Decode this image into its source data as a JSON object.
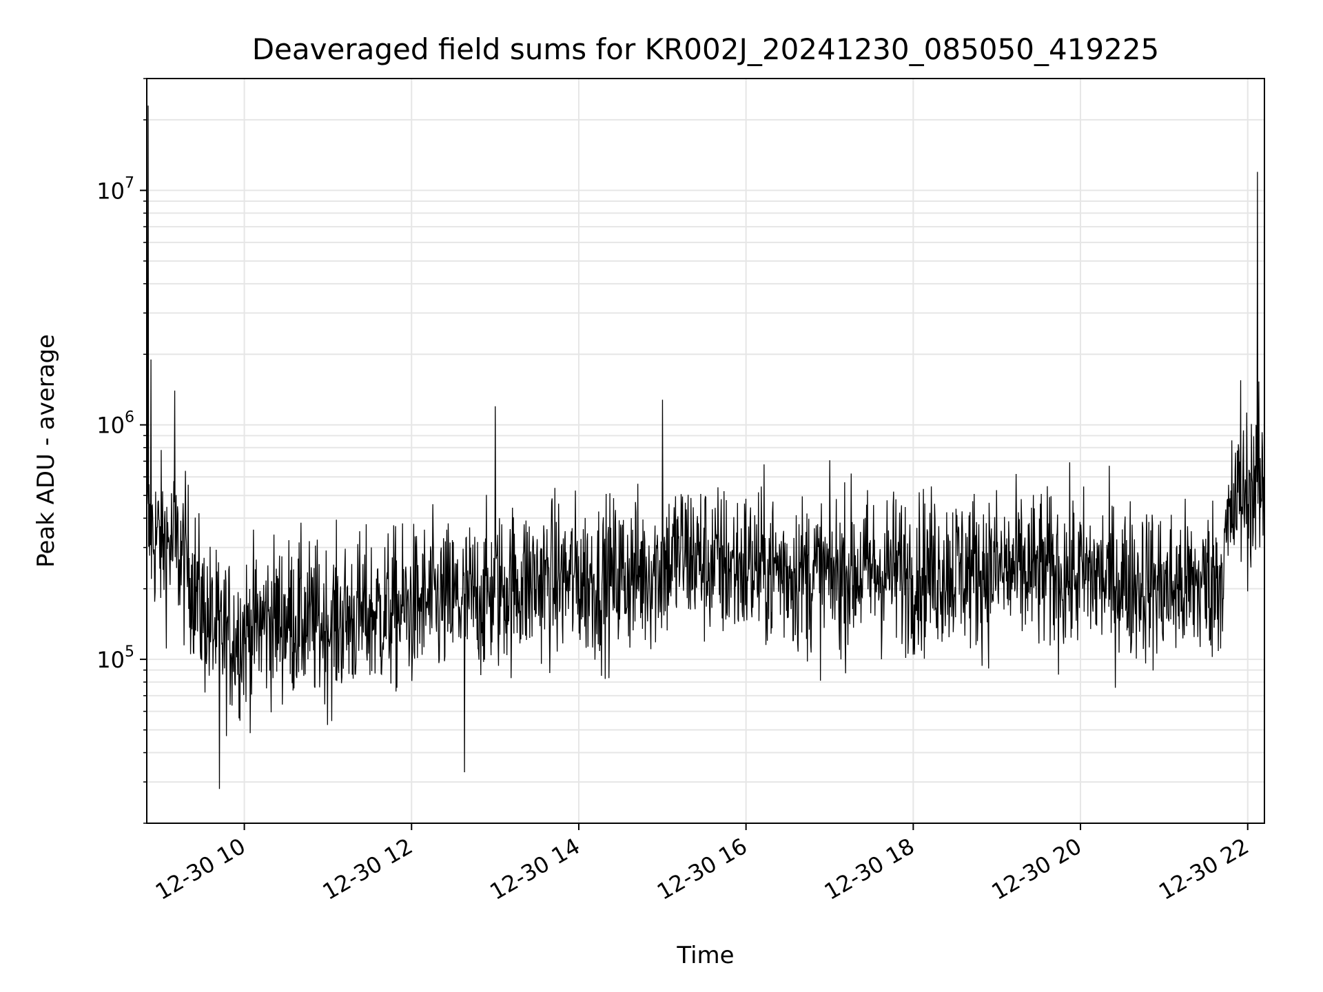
{
  "chart_data": {
    "type": "line",
    "title": "Deaveraged field sums for KR002J_20241230_085050_419225",
    "xlabel": "Time",
    "ylabel": "Peak ADU - average",
    "yscale": "log",
    "ylim": [
      20000,
      30000000
    ],
    "xlim": [
      "12-30 08:50",
      "12-30 22:12"
    ],
    "grid": true,
    "line_color": "#000000",
    "grid_color": "#e6e6e6",
    "x_ticks": [
      {
        "value": "12-30 10:00",
        "label": "12-30 10"
      },
      {
        "value": "12-30 12:00",
        "label": "12-30 12"
      },
      {
        "value": "12-30 14:00",
        "label": "12-30 14"
      },
      {
        "value": "12-30 16:00",
        "label": "12-30 16"
      },
      {
        "value": "12-30 18:00",
        "label": "12-30 18"
      },
      {
        "value": "12-30 20:00",
        "label": "12-30 20"
      },
      {
        "value": "12-30 22:00",
        "label": "12-30 22"
      }
    ],
    "y_ticks": [
      {
        "value": 100000,
        "base": "10",
        "exp": "5"
      },
      {
        "value": 1000000,
        "base": "10",
        "exp": "6"
      },
      {
        "value": 10000000,
        "base": "10",
        "exp": "7"
      }
    ],
    "series": [
      {
        "x": [
          "12-30 08:50",
          "12-30 09:00",
          "12-30 09:10",
          "12-30 09:20",
          "12-30 09:30",
          "12-30 09:40",
          "12-30 09:50",
          "12-30 10:00",
          "12-30 10:15",
          "12-30 10:30",
          "12-30 10:45",
          "12-30 11:00",
          "12-30 11:15",
          "12-30 11:30",
          "12-30 11:45",
          "12-30 12:00",
          "12-30 12:15",
          "12-30 12:30",
          "12-30 12:45",
          "12-30 13:00",
          "12-30 13:15",
          "12-30 13:30",
          "12-30 13:45",
          "12-30 14:00",
          "12-30 14:15",
          "12-30 14:30",
          "12-30 14:45",
          "12-30 15:00",
          "12-30 15:15",
          "12-30 15:30",
          "12-30 15:45",
          "12-30 16:00",
          "12-30 16:15",
          "12-30 16:30",
          "12-30 16:45",
          "12-30 17:00",
          "12-30 17:15",
          "12-30 17:30",
          "12-30 17:45",
          "12-30 18:00",
          "12-30 18:15",
          "12-30 18:30",
          "12-30 18:45",
          "12-30 19:00",
          "12-30 19:15",
          "12-30 19:30",
          "12-30 19:45",
          "12-30 20:00",
          "12-30 20:15",
          "12-30 20:30",
          "12-30 20:45",
          "12-30 21:00",
          "12-30 21:15",
          "12-30 21:30",
          "12-30 21:40",
          "12-30 21:50",
          "12-30 22:00",
          "12-30 22:05",
          "12-30 22:12"
        ],
        "y": [
          350000,
          320000,
          300000,
          250000,
          160000,
          130000,
          125000,
          130000,
          145000,
          150000,
          145000,
          140000,
          150000,
          155000,
          160000,
          165000,
          175000,
          175000,
          180000,
          195000,
          210000,
          215000,
          220000,
          220000,
          215000,
          230000,
          235000,
          250000,
          290000,
          260000,
          250000,
          250000,
          245000,
          240000,
          230000,
          225000,
          240000,
          235000,
          240000,
          235000,
          240000,
          245000,
          240000,
          240000,
          235000,
          235000,
          230000,
          230000,
          225000,
          215000,
          215000,
          200000,
          205000,
          210000,
          230000,
          450000,
          520000,
          550000,
          500000
        ],
        "spikes": [
          {
            "x": "12-30 08:51",
            "y": 23000000
          },
          {
            "x": "12-30 08:53",
            "y": 1900000
          },
          {
            "x": "12-30 09:10",
            "y": 1400000
          },
          {
            "x": "12-30 13:00",
            "y": 1200000
          },
          {
            "x": "12-30 15:00",
            "y": 1280000
          },
          {
            "x": "12-30 21:55",
            "y": 1550000
          },
          {
            "x": "12-30 22:07",
            "y": 12000000
          },
          {
            "x": "12-30 09:42",
            "y": 28000
          },
          {
            "x": "12-30 12:38",
            "y": 33000
          }
        ]
      }
    ]
  }
}
